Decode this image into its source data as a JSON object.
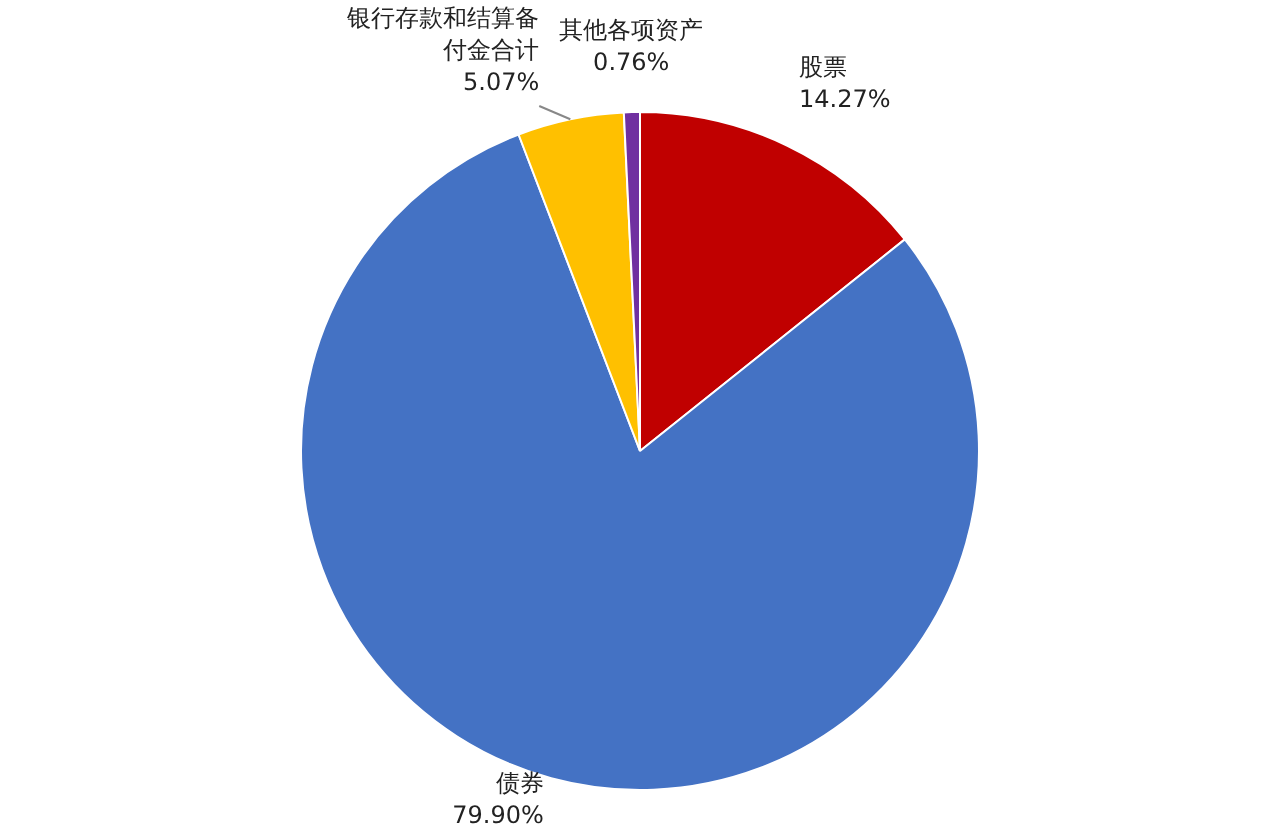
{
  "chart_data": {
    "type": "pie",
    "categories": [
      "股票",
      "债券",
      "银行存款和结算备付金合计",
      "其他各项资产"
    ],
    "values": [
      14.27,
      79.9,
      5.07,
      0.76
    ],
    "colors": [
      "#c00000",
      "#4472c4",
      "#ffc000",
      "#7030a0"
    ],
    "value_labels": [
      "14.27%",
      "79.90%",
      "5.07%",
      "0.76%"
    ],
    "legend": false
  }
}
